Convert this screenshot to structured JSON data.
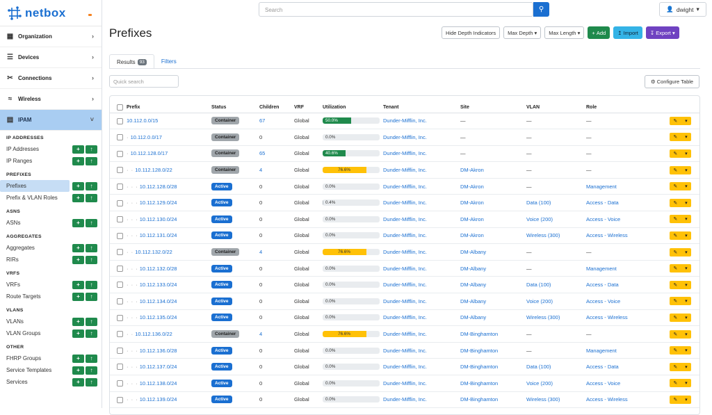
{
  "brand": {
    "name": "netbox"
  },
  "sidebar": {
    "top_items": [
      {
        "label": "Organization",
        "icon": "building-icon"
      },
      {
        "label": "Devices",
        "icon": "server-icon"
      },
      {
        "label": "Connections",
        "icon": "cable-icon"
      },
      {
        "label": "Wireless",
        "icon": "wifi-icon"
      },
      {
        "label": "IPAM",
        "icon": "ipam-icon",
        "active": true
      }
    ],
    "sections": [
      {
        "title": "IP ADDRESSES",
        "items": [
          "IP Addresses",
          "IP Ranges"
        ]
      },
      {
        "title": "PREFIXES",
        "items": [
          "Prefixes",
          "Prefix & VLAN Roles"
        ]
      },
      {
        "title": "ASNS",
        "items": [
          "ASNs"
        ]
      },
      {
        "title": "AGGREGATES",
        "items": [
          "Aggregates",
          "RIRs"
        ]
      },
      {
        "title": "VRFS",
        "items": [
          "VRFs",
          "Route Targets"
        ]
      },
      {
        "title": "VLANS",
        "items": [
          "VLANs",
          "VLAN Groups"
        ]
      },
      {
        "title": "OTHER",
        "items": [
          "FHRP Groups",
          "Service Templates",
          "Services"
        ]
      }
    ],
    "selected": "Prefixes"
  },
  "topbar": {
    "search_placeholder": "Search",
    "user": "dwight"
  },
  "page": {
    "title": "Prefixes",
    "actions": {
      "hide_depth": "Hide Depth Indicators",
      "max_depth": "Max Depth",
      "max_length": "Max Length",
      "add": "Add",
      "import": "Import",
      "export": "Export"
    },
    "tabs": {
      "results": "Results",
      "results_count": "93",
      "filters": "Filters"
    },
    "quick_search_placeholder": "Quick search",
    "configure_table": "Configure Table"
  },
  "table": {
    "columns": [
      "Prefix",
      "Status",
      "Children",
      "VRF",
      "Utilization",
      "Tenant",
      "Site",
      "VLAN",
      "Role"
    ],
    "rows": [
      {
        "depth": "",
        "prefix": "10.112.0.0/15",
        "status": "Container",
        "children": "67",
        "vrf": "Global",
        "util": "50.0%",
        "util_pct": 50,
        "tenant": "Dunder-Mifflin, Inc.",
        "site": "—",
        "vlan": "—",
        "role": "—"
      },
      {
        "depth": "·",
        "prefix": "10.112.0.0/17",
        "status": "Container",
        "children": "0",
        "vrf": "Global",
        "util": "0.0%",
        "util_pct": 0,
        "tenant": "Dunder-Mifflin, Inc.",
        "site": "—",
        "vlan": "—",
        "role": "—"
      },
      {
        "depth": "·",
        "prefix": "10.112.128.0/17",
        "status": "Container",
        "children": "65",
        "vrf": "Global",
        "util": "40.6%",
        "util_pct": 40.6,
        "tenant": "Dunder-Mifflin, Inc.",
        "site": "—",
        "vlan": "—",
        "role": "—"
      },
      {
        "depth": "· ·",
        "prefix": "10.112.128.0/22",
        "status": "Container",
        "children": "4",
        "vrf": "Global",
        "util": "76.6%",
        "util_pct": 76.6,
        "tenant": "Dunder-Mifflin, Inc.",
        "site": "DM-Akron",
        "vlan": "—",
        "role": "—"
      },
      {
        "depth": "· · ·",
        "prefix": "10.112.128.0/28",
        "status": "Active",
        "children": "0",
        "vrf": "Global",
        "util": "0.0%",
        "util_pct": 0,
        "tenant": "Dunder-Mifflin, Inc.",
        "site": "DM-Akron",
        "vlan": "—",
        "role": "Management"
      },
      {
        "depth": "· · ·",
        "prefix": "10.112.129.0/24",
        "status": "Active",
        "children": "0",
        "vrf": "Global",
        "util": "0.4%",
        "util_pct": 0.4,
        "tenant": "Dunder-Mifflin, Inc.",
        "site": "DM-Akron",
        "vlan": "Data (100)",
        "role": "Access - Data"
      },
      {
        "depth": "· · ·",
        "prefix": "10.112.130.0/24",
        "status": "Active",
        "children": "0",
        "vrf": "Global",
        "util": "0.0%",
        "util_pct": 0,
        "tenant": "Dunder-Mifflin, Inc.",
        "site": "DM-Akron",
        "vlan": "Voice (200)",
        "role": "Access - Voice"
      },
      {
        "depth": "· · ·",
        "prefix": "10.112.131.0/24",
        "status": "Active",
        "children": "0",
        "vrf": "Global",
        "util": "0.0%",
        "util_pct": 0,
        "tenant": "Dunder-Mifflin, Inc.",
        "site": "DM-Akron",
        "vlan": "Wireless (300)",
        "role": "Access - Wireless"
      },
      {
        "depth": "· ·",
        "prefix": "10.112.132.0/22",
        "status": "Container",
        "children": "4",
        "vrf": "Global",
        "util": "76.6%",
        "util_pct": 76.6,
        "tenant": "Dunder-Mifflin, Inc.",
        "site": "DM-Albany",
        "vlan": "—",
        "role": "—"
      },
      {
        "depth": "· · ·",
        "prefix": "10.112.132.0/28",
        "status": "Active",
        "children": "0",
        "vrf": "Global",
        "util": "0.0%",
        "util_pct": 0,
        "tenant": "Dunder-Mifflin, Inc.",
        "site": "DM-Albany",
        "vlan": "—",
        "role": "Management"
      },
      {
        "depth": "· · ·",
        "prefix": "10.112.133.0/24",
        "status": "Active",
        "children": "0",
        "vrf": "Global",
        "util": "0.0%",
        "util_pct": 0,
        "tenant": "Dunder-Mifflin, Inc.",
        "site": "DM-Albany",
        "vlan": "Data (100)",
        "role": "Access - Data"
      },
      {
        "depth": "· · ·",
        "prefix": "10.112.134.0/24",
        "status": "Active",
        "children": "0",
        "vrf": "Global",
        "util": "0.0%",
        "util_pct": 0,
        "tenant": "Dunder-Mifflin, Inc.",
        "site": "DM-Albany",
        "vlan": "Voice (200)",
        "role": "Access - Voice"
      },
      {
        "depth": "· · ·",
        "prefix": "10.112.135.0/24",
        "status": "Active",
        "children": "0",
        "vrf": "Global",
        "util": "0.0%",
        "util_pct": 0,
        "tenant": "Dunder-Mifflin, Inc.",
        "site": "DM-Albany",
        "vlan": "Wireless (300)",
        "role": "Access - Wireless"
      },
      {
        "depth": "· ·",
        "prefix": "10.112.136.0/22",
        "status": "Container",
        "children": "4",
        "vrf": "Global",
        "util": "76.6%",
        "util_pct": 76.6,
        "tenant": "Dunder-Mifflin, Inc.",
        "site": "DM-Binghamton",
        "vlan": "—",
        "role": "—"
      },
      {
        "depth": "· · ·",
        "prefix": "10.112.136.0/28",
        "status": "Active",
        "children": "0",
        "vrf": "Global",
        "util": "0.0%",
        "util_pct": 0,
        "tenant": "Dunder-Mifflin, Inc.",
        "site": "DM-Binghamton",
        "vlan": "—",
        "role": "Management"
      },
      {
        "depth": "· · ·",
        "prefix": "10.112.137.0/24",
        "status": "Active",
        "children": "0",
        "vrf": "Global",
        "util": "0.0%",
        "util_pct": 0,
        "tenant": "Dunder-Mifflin, Inc.",
        "site": "DM-Binghamton",
        "vlan": "Data (100)",
        "role": "Access - Data"
      },
      {
        "depth": "· · ·",
        "prefix": "10.112.138.0/24",
        "status": "Active",
        "children": "0",
        "vrf": "Global",
        "util": "0.0%",
        "util_pct": 0,
        "tenant": "Dunder-Mifflin, Inc.",
        "site": "DM-Binghamton",
        "vlan": "Voice (200)",
        "role": "Access - Voice"
      },
      {
        "depth": "· · ·",
        "prefix": "10.112.139.0/24",
        "status": "Active",
        "children": "0",
        "vrf": "Global",
        "util": "0.0%",
        "util_pct": 0,
        "tenant": "Dunder-Mifflin, Inc.",
        "site": "DM-Binghamton",
        "vlan": "Wireless (300)",
        "role": "Access - Wireless"
      }
    ]
  },
  "colors": {
    "primary": "#1a6fd1",
    "success": "#1f8a4c",
    "warning": "#ffc107",
    "accent_purple": "#6f42c1",
    "accent_cyan": "#34b3e6"
  }
}
